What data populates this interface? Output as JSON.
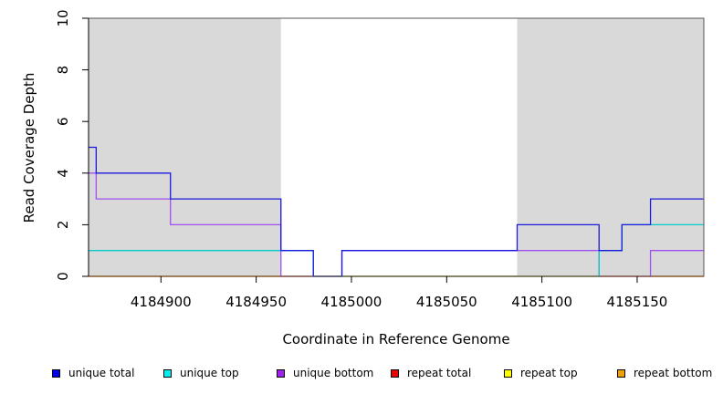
{
  "chart_data": {
    "type": "line",
    "xlabel": "Coordinate in Reference Genome",
    "ylabel": "Read Coverage Depth",
    "xlim": [
      4184862,
      4185185
    ],
    "ylim": [
      0,
      10
    ],
    "x_ticks": [
      4184900,
      4184950,
      4185000,
      4185050,
      4185100,
      4185150
    ],
    "x_tick_labels": [
      "4184900",
      "4184950",
      "4185000",
      "4185050",
      "4185100",
      "4185150"
    ],
    "y_ticks": [
      0,
      2,
      4,
      6,
      8,
      10
    ],
    "y_tick_labels": [
      "0",
      "2",
      "4",
      "6",
      "8",
      "10"
    ],
    "shaded_regions": [
      {
        "x0": 4184862,
        "x1": 4184963
      },
      {
        "x0": 4185087,
        "x1": 4185185
      }
    ],
    "shade_color": "#d9d9d9",
    "series": [
      {
        "name": "unique total",
        "color": "#1a1adc",
        "x": [
          4184862,
          4184866,
          4184905,
          4184963,
          4184980,
          4184995,
          4185087,
          4185130,
          4185142,
          4185157,
          4185185
        ],
        "y": [
          5,
          4,
          3,
          1,
          0,
          1,
          2,
          1,
          2,
          3,
          3
        ]
      },
      {
        "name": "unique top",
        "color": "#00cccc",
        "x": [
          4184862,
          4184963,
          4184980,
          4185087,
          4185130,
          4185142,
          4185157,
          4185185
        ],
        "y": [
          1,
          1,
          0,
          0,
          1,
          2,
          2,
          2
        ]
      },
      {
        "name": "unique bottom",
        "color": "#a050ee",
        "x": [
          4184862,
          4184866,
          4184905,
          4184963,
          4184995,
          4185087,
          4185130,
          4185157,
          4185185
        ],
        "y": [
          4,
          3,
          2,
          0,
          1,
          1,
          0,
          1,
          1
        ]
      },
      {
        "name": "repeat total",
        "color": "#e00000",
        "x": [
          4184862,
          4185185
        ],
        "y": [
          0,
          0
        ]
      },
      {
        "name": "repeat top",
        "color": "#eeee00",
        "x": [
          4184862,
          4185185
        ],
        "y": [
          0,
          0
        ]
      },
      {
        "name": "repeat bottom",
        "color": "#f0a000",
        "x": [
          4184862,
          4185185
        ],
        "y": [
          0,
          0
        ]
      }
    ],
    "legend": {
      "placement": "bottom",
      "items": [
        {
          "label": "unique total",
          "color": "#0000ee"
        },
        {
          "label": "unique top",
          "color": "#00eeee"
        },
        {
          "label": "unique bottom",
          "color": "#a020f0"
        },
        {
          "label": "repeat total",
          "color": "#ee0000"
        },
        {
          "label": "repeat top",
          "color": "#ffff00"
        },
        {
          "label": "repeat bottom",
          "color": "#f0a000"
        }
      ]
    },
    "grid": false
  }
}
